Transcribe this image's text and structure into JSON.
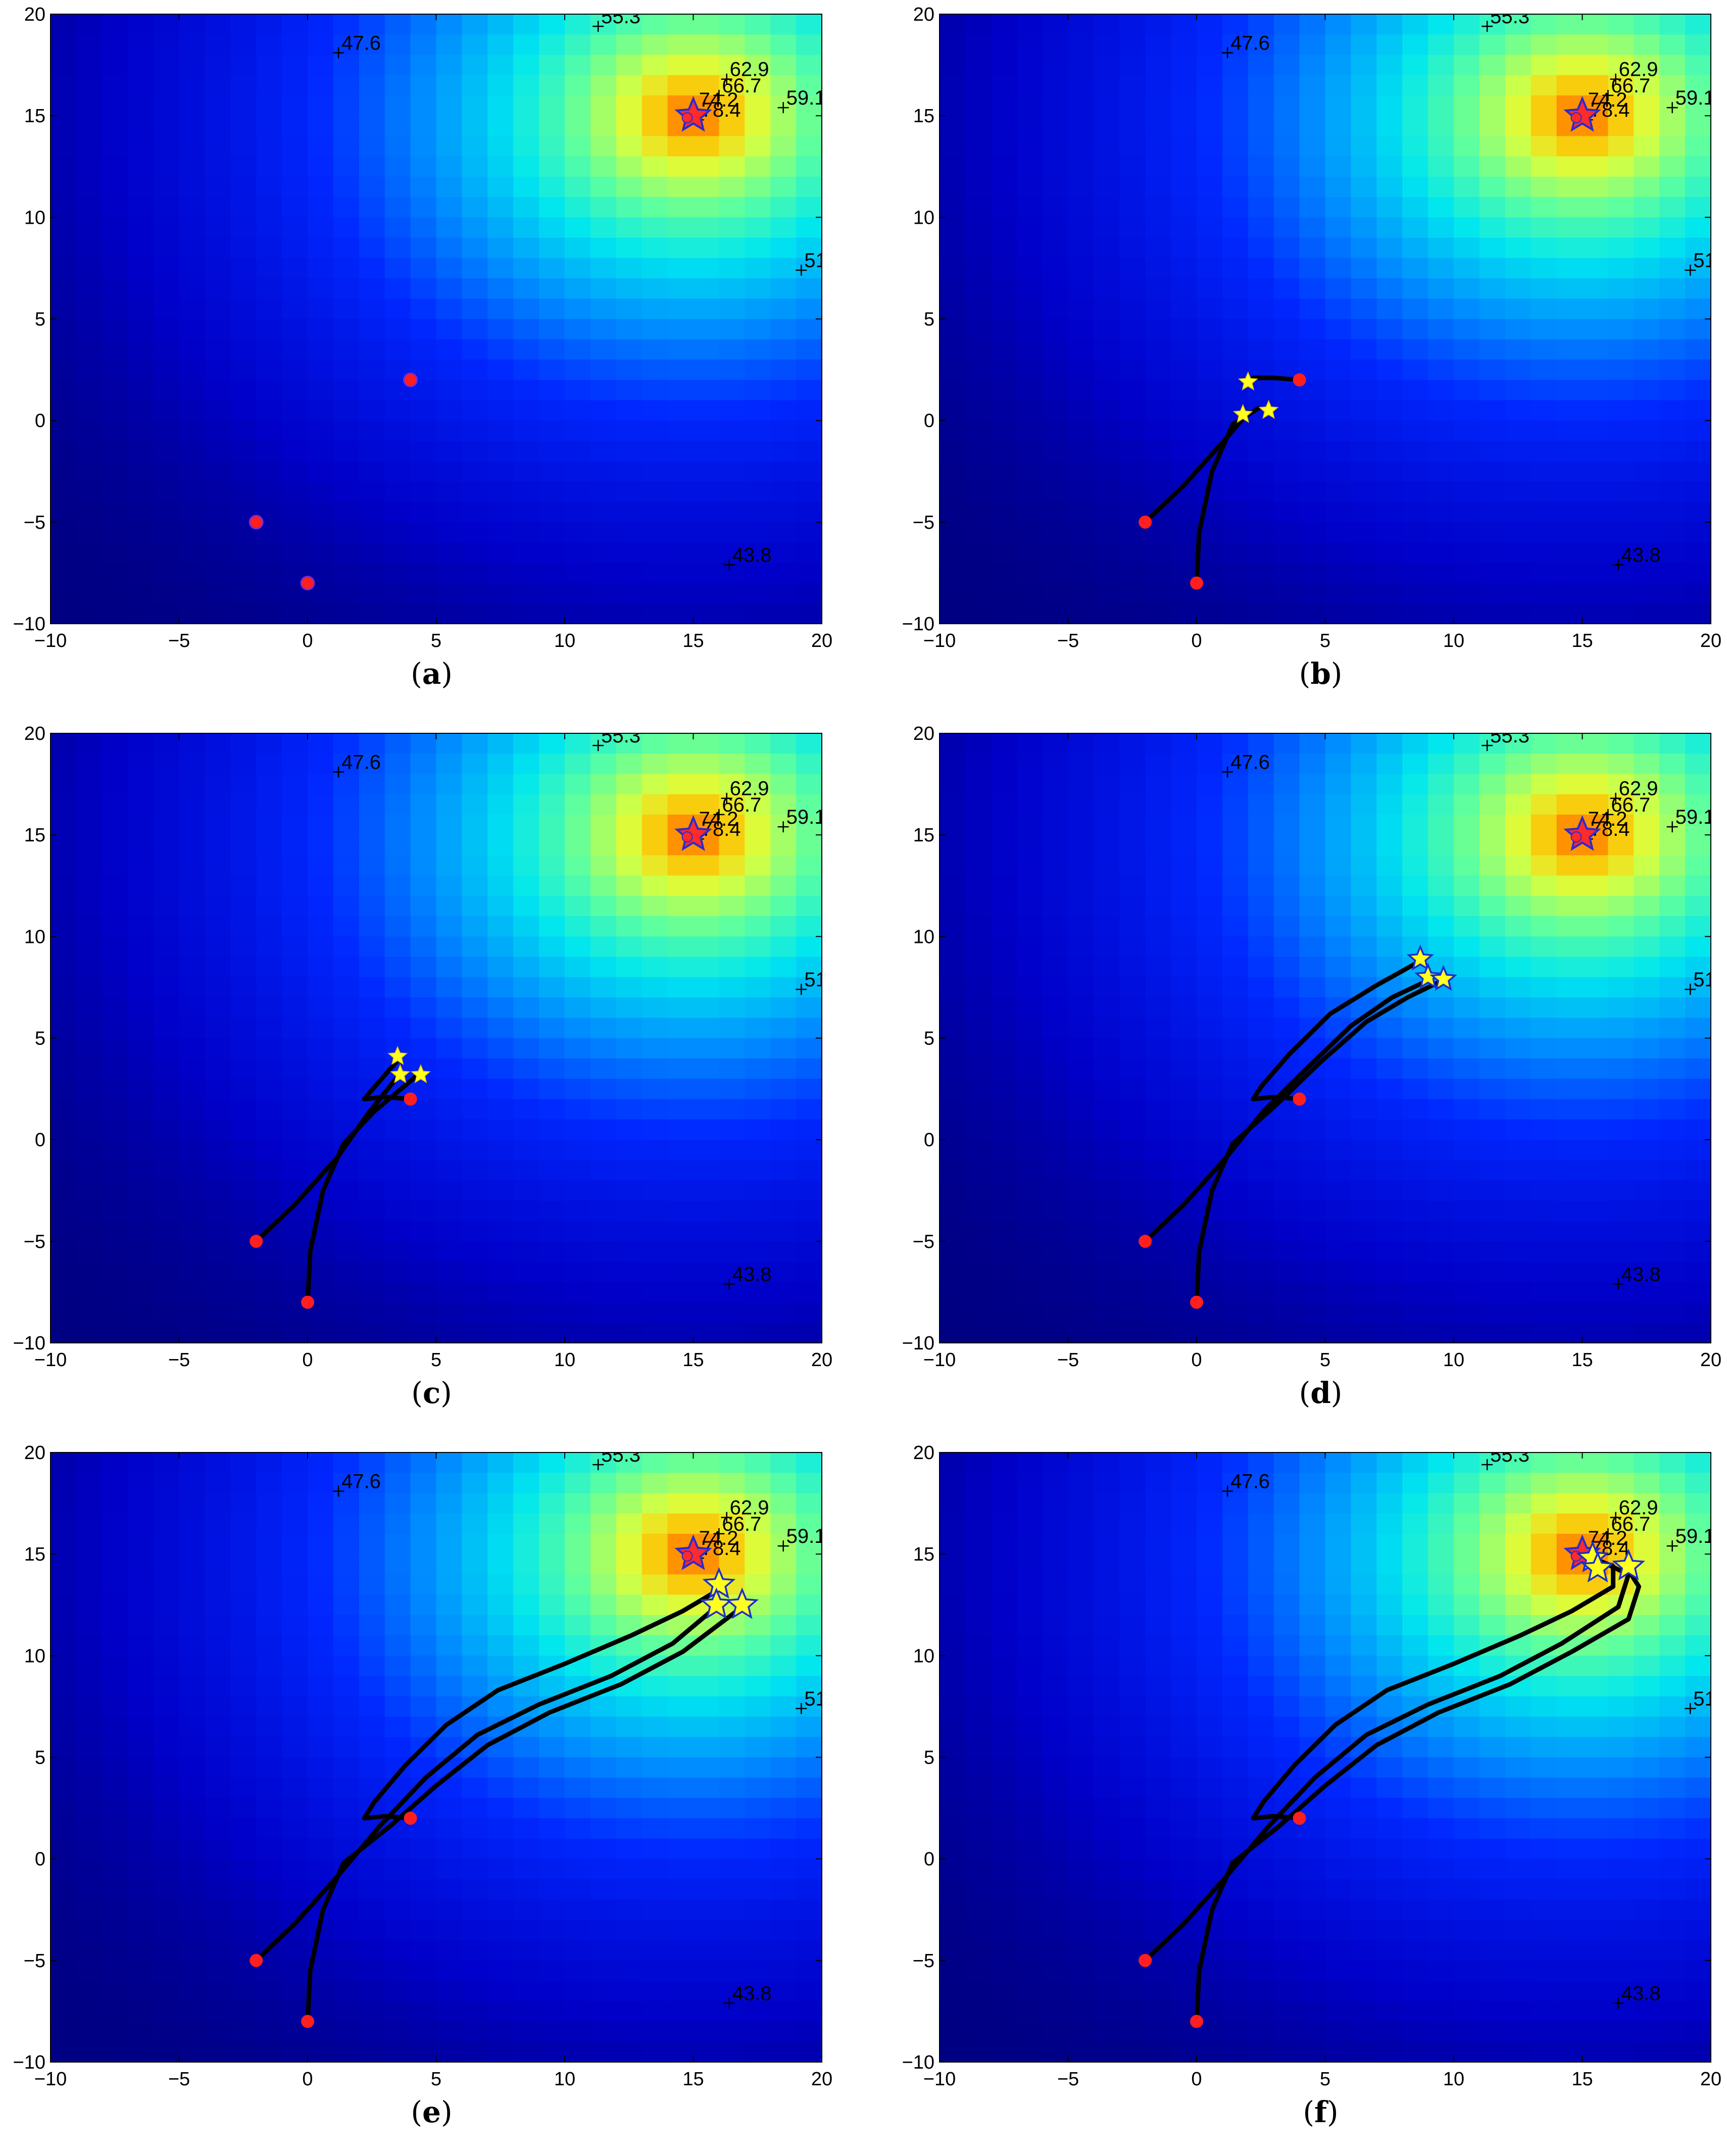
{
  "figure": {
    "panels": [
      {
        "id": "a",
        "caption_open": "(",
        "caption_letter": "a",
        "caption_close": ")"
      },
      {
        "id": "b",
        "caption_open": "(",
        "caption_letter": "b",
        "caption_close": ")"
      },
      {
        "id": "c",
        "caption_open": "(",
        "caption_letter": "c",
        "caption_close": ")"
      },
      {
        "id": "d",
        "caption_open": "(",
        "caption_letter": "d",
        "caption_close": ")"
      },
      {
        "id": "e",
        "caption_open": "(",
        "caption_letter": "e",
        "caption_close": ")"
      },
      {
        "id": "f",
        "caption_open": "(",
        "caption_letter": "f",
        "caption_close": ")"
      }
    ]
  },
  "chart_data": [
    {
      "panel": "a",
      "type": "heatmap",
      "xlim": [
        -10,
        20
      ],
      "ylim": [
        -10,
        20
      ],
      "xticks": [
        -10,
        -5,
        0,
        5,
        10,
        15,
        20
      ],
      "yticks": [
        -10,
        -5,
        0,
        5,
        10,
        15,
        20
      ],
      "peak": {
        "x": 15,
        "y": 15
      },
      "annotations": [
        {
          "text": "47.6",
          "x": 1.2,
          "y": 18.1
        },
        {
          "text": "55.3",
          "x": 11.3,
          "y": 19.4
        },
        {
          "text": "62.9",
          "x": 16.3,
          "y": 16.8
        },
        {
          "text": "66.7",
          "x": 16.0,
          "y": 16.0
        },
        {
          "text": "59.1",
          "x": 18.5,
          "y": 15.4
        },
        {
          "text": "74.2",
          "x": 15.1,
          "y": 15.3
        },
        {
          "text": "78.4",
          "x": 15.2,
          "y": 14.8
        },
        {
          "text": "51",
          "x": 19.2,
          "y": 7.4
        },
        {
          "text": "43.8",
          "x": 16.4,
          "y": -7.1
        }
      ],
      "paths": [],
      "starts": [
        {
          "x": 4,
          "y": 2
        },
        {
          "x": -2,
          "y": -5
        },
        {
          "x": 0,
          "y": -8
        }
      ],
      "stars": [],
      "star_style": "small"
    },
    {
      "panel": "b",
      "type": "heatmap",
      "xlim": [
        -10,
        20
      ],
      "ylim": [
        -10,
        20
      ],
      "xticks": [
        -10,
        -5,
        0,
        5,
        10,
        15,
        20
      ],
      "yticks": [
        -10,
        -5,
        0,
        5,
        10,
        15,
        20
      ],
      "peak": {
        "x": 15,
        "y": 15
      },
      "annotations": [
        {
          "text": "47.6",
          "x": 1.2,
          "y": 18.1
        },
        {
          "text": "55.3",
          "x": 11.3,
          "y": 19.4
        },
        {
          "text": "62.9",
          "x": 16.3,
          "y": 16.8
        },
        {
          "text": "66.7",
          "x": 16.0,
          "y": 16.0
        },
        {
          "text": "59.1",
          "x": 18.5,
          "y": 15.4
        },
        {
          "text": "74.2",
          "x": 15.1,
          "y": 15.3
        },
        {
          "text": "78.4",
          "x": 15.2,
          "y": 14.8
        },
        {
          "text": "51",
          "x": 19.2,
          "y": 7.4
        },
        {
          "text": "43.8",
          "x": 16.4,
          "y": -7.1
        }
      ],
      "paths": [
        [
          [
            4,
            2
          ],
          [
            3,
            2.1
          ],
          [
            2.2,
            2.1
          ]
        ],
        [
          [
            -2,
            -5
          ],
          [
            -0.5,
            -3.2
          ],
          [
            1.2,
            -0.8
          ],
          [
            2,
            0.4
          ]
        ],
        [
          [
            0,
            -8
          ],
          [
            0.1,
            -5.5
          ],
          [
            0.6,
            -2.5
          ],
          [
            1.4,
            -0.2
          ],
          [
            2.4,
            0.6
          ]
        ]
      ],
      "starts": [
        {
          "x": 4,
          "y": 2
        },
        {
          "x": -2,
          "y": -5
        },
        {
          "x": 0,
          "y": -8
        }
      ],
      "stars": [
        {
          "x": 2,
          "y": 1.9
        },
        {
          "x": 1.8,
          "y": 0.3
        },
        {
          "x": 2.8,
          "y": 0.5
        }
      ],
      "star_style": "small"
    },
    {
      "panel": "c",
      "type": "heatmap",
      "xlim": [
        -10,
        20
      ],
      "ylim": [
        -10,
        20
      ],
      "xticks": [
        -10,
        -5,
        0,
        5,
        10,
        15,
        20
      ],
      "yticks": [
        -10,
        -5,
        0,
        5,
        10,
        15,
        20
      ],
      "peak": {
        "x": 15,
        "y": 15
      },
      "annotations": [
        {
          "text": "47.6",
          "x": 1.2,
          "y": 18.1
        },
        {
          "text": "55.3",
          "x": 11.3,
          "y": 19.4
        },
        {
          "text": "62.9",
          "x": 16.3,
          "y": 16.8
        },
        {
          "text": "66.7",
          "x": 16.0,
          "y": 16.0
        },
        {
          "text": "59.1",
          "x": 18.5,
          "y": 15.4
        },
        {
          "text": "74.2",
          "x": 15.1,
          "y": 15.3
        },
        {
          "text": "78.4",
          "x": 15.2,
          "y": 14.8
        },
        {
          "text": "51",
          "x": 19.2,
          "y": 7.4
        },
        {
          "text": "43.8",
          "x": 16.4,
          "y": -7.1
        }
      ],
      "paths": [
        [
          [
            4,
            2
          ],
          [
            3,
            2.1
          ],
          [
            2.2,
            2.0
          ],
          [
            2.4,
            2.3
          ],
          [
            3.5,
            3.9
          ]
        ],
        [
          [
            -2,
            -5
          ],
          [
            -0.5,
            -3.2
          ],
          [
            1.2,
            -0.8
          ],
          [
            2.3,
            1.2
          ],
          [
            3.5,
            3.1
          ]
        ],
        [
          [
            0,
            -8
          ],
          [
            0.1,
            -5.5
          ],
          [
            0.6,
            -2.5
          ],
          [
            1.4,
            -0.2
          ],
          [
            2.6,
            1.4
          ],
          [
            4.2,
            3.1
          ]
        ]
      ],
      "starts": [
        {
          "x": 4,
          "y": 2
        },
        {
          "x": -2,
          "y": -5
        },
        {
          "x": 0,
          "y": -8
        }
      ],
      "stars": [
        {
          "x": 3.5,
          "y": 4.1
        },
        {
          "x": 3.6,
          "y": 3.2
        },
        {
          "x": 4.4,
          "y": 3.2
        }
      ],
      "star_style": "small"
    },
    {
      "panel": "d",
      "type": "heatmap",
      "xlim": [
        -10,
        20
      ],
      "ylim": [
        -10,
        20
      ],
      "xticks": [
        -10,
        -5,
        0,
        5,
        10,
        15,
        20
      ],
      "yticks": [
        -10,
        -5,
        0,
        5,
        10,
        15,
        20
      ],
      "peak": {
        "x": 15,
        "y": 15
      },
      "annotations": [
        {
          "text": "47.6",
          "x": 1.2,
          "y": 18.1
        },
        {
          "text": "55.3",
          "x": 11.3,
          "y": 19.4
        },
        {
          "text": "62.9",
          "x": 16.3,
          "y": 16.8
        },
        {
          "text": "66.7",
          "x": 16.0,
          "y": 16.0
        },
        {
          "text": "59.1",
          "x": 18.5,
          "y": 15.4
        },
        {
          "text": "74.2",
          "x": 15.1,
          "y": 15.3
        },
        {
          "text": "78.4",
          "x": 15.2,
          "y": 14.8
        },
        {
          "text": "51",
          "x": 19.2,
          "y": 7.4
        },
        {
          "text": "43.8",
          "x": 16.4,
          "y": -7.1
        }
      ],
      "paths": [
        [
          [
            4,
            2
          ],
          [
            3,
            2.1
          ],
          [
            2.2,
            2.0
          ],
          [
            2.5,
            2.6
          ],
          [
            3.6,
            4.2
          ],
          [
            5.2,
            6.2
          ],
          [
            7,
            7.6
          ],
          [
            8.7,
            8.8
          ]
        ],
        [
          [
            -2,
            -5
          ],
          [
            -0.5,
            -3.2
          ],
          [
            1.2,
            -0.8
          ],
          [
            2.6,
            1.4
          ],
          [
            4.2,
            3.4
          ],
          [
            6,
            5.6
          ],
          [
            7.6,
            7.0
          ],
          [
            9.1,
            7.9
          ]
        ],
        [
          [
            0,
            -8
          ],
          [
            0.1,
            -5.5
          ],
          [
            0.6,
            -2.5
          ],
          [
            1.4,
            -0.2
          ],
          [
            3,
            1.6
          ],
          [
            4.8,
            3.8
          ],
          [
            6.6,
            5.8
          ],
          [
            8.2,
            7.0
          ],
          [
            9.5,
            7.8
          ]
        ]
      ],
      "starts": [
        {
          "x": 4,
          "y": 2
        },
        {
          "x": -2,
          "y": -5
        },
        {
          "x": 0,
          "y": -8
        }
      ],
      "stars": [
        {
          "x": 8.7,
          "y": 8.9
        },
        {
          "x": 9.0,
          "y": 8.0
        },
        {
          "x": 9.6,
          "y": 7.9
        }
      ],
      "star_style": "medium"
    },
    {
      "panel": "e",
      "type": "heatmap",
      "xlim": [
        -10,
        20
      ],
      "ylim": [
        -10,
        20
      ],
      "xticks": [
        -10,
        -5,
        0,
        5,
        10,
        15,
        20
      ],
      "yticks": [
        -10,
        -5,
        0,
        5,
        10,
        15,
        20
      ],
      "peak": {
        "x": 15,
        "y": 15
      },
      "annotations": [
        {
          "text": "47.6",
          "x": 1.2,
          "y": 18.1
        },
        {
          "text": "55.3",
          "x": 11.3,
          "y": 19.4
        },
        {
          "text": "62.9",
          "x": 16.3,
          "y": 16.8
        },
        {
          "text": "66.7",
          "x": 16.0,
          "y": 16.0
        },
        {
          "text": "59.1",
          "x": 18.5,
          "y": 15.4
        },
        {
          "text": "74.2",
          "x": 15.1,
          "y": 15.3
        },
        {
          "text": "78.4",
          "x": 15.2,
          "y": 14.8
        },
        {
          "text": "51",
          "x": 19.2,
          "y": 7.4
        },
        {
          "text": "43.8",
          "x": 16.4,
          "y": -7.1
        }
      ],
      "paths": [
        [
          [
            4,
            2
          ],
          [
            3,
            2.1
          ],
          [
            2.2,
            2.0
          ],
          [
            2.6,
            2.8
          ],
          [
            3.8,
            4.6
          ],
          [
            5.4,
            6.6
          ],
          [
            7.4,
            8.3
          ],
          [
            10,
            9.6
          ],
          [
            12.6,
            11.0
          ],
          [
            14.6,
            12.2
          ],
          [
            15.8,
            13.1
          ]
        ],
        [
          [
            -2,
            -5
          ],
          [
            -0.5,
            -3.2
          ],
          [
            1.2,
            -0.8
          ],
          [
            2.8,
            1.6
          ],
          [
            4.6,
            4.0
          ],
          [
            6.6,
            6.1
          ],
          [
            9,
            7.6
          ],
          [
            11.8,
            9.0
          ],
          [
            14.2,
            10.6
          ],
          [
            15.8,
            12.3
          ]
        ],
        [
          [
            0,
            -8
          ],
          [
            0.1,
            -5.5
          ],
          [
            0.6,
            -2.5
          ],
          [
            1.4,
            -0.2
          ],
          [
            3.2,
            1.6
          ],
          [
            5.0,
            3.6
          ],
          [
            7.0,
            5.6
          ],
          [
            9.4,
            7.2
          ],
          [
            12.2,
            8.6
          ],
          [
            14.6,
            10.2
          ],
          [
            16.8,
            12.3
          ]
        ]
      ],
      "starts": [
        {
          "x": 4,
          "y": 2
        },
        {
          "x": -2,
          "y": -5
        },
        {
          "x": 0,
          "y": -8
        }
      ],
      "stars": [
        {
          "x": 16.0,
          "y": 13.5
        },
        {
          "x": 15.9,
          "y": 12.5
        },
        {
          "x": 16.9,
          "y": 12.5
        }
      ],
      "star_style": "large"
    },
    {
      "panel": "f",
      "type": "heatmap",
      "xlim": [
        -10,
        20
      ],
      "ylim": [
        -10,
        20
      ],
      "xticks": [
        -10,
        -5,
        0,
        5,
        10,
        15,
        20
      ],
      "yticks": [
        -10,
        -5,
        0,
        5,
        10,
        15,
        20
      ],
      "peak": {
        "x": 15,
        "y": 15
      },
      "annotations": [
        {
          "text": "47.6",
          "x": 1.2,
          "y": 18.1
        },
        {
          "text": "55.3",
          "x": 11.3,
          "y": 19.4
        },
        {
          "text": "62.9",
          "x": 16.3,
          "y": 16.8
        },
        {
          "text": "66.7",
          "x": 16.0,
          "y": 16.0
        },
        {
          "text": "59.1",
          "x": 18.5,
          "y": 15.4
        },
        {
          "text": "74.2",
          "x": 15.1,
          "y": 15.3
        },
        {
          "text": "78.4",
          "x": 15.2,
          "y": 14.8
        },
        {
          "text": "51",
          "x": 19.2,
          "y": 7.4
        },
        {
          "text": "43.8",
          "x": 16.4,
          "y": -7.1
        }
      ],
      "paths": [
        [
          [
            4,
            2
          ],
          [
            3,
            2.1
          ],
          [
            2.2,
            2.0
          ],
          [
            2.6,
            2.8
          ],
          [
            3.8,
            4.6
          ],
          [
            5.4,
            6.6
          ],
          [
            7.4,
            8.3
          ],
          [
            10,
            9.6
          ],
          [
            12.6,
            11.0
          ],
          [
            14.6,
            12.2
          ],
          [
            16.2,
            13.4
          ],
          [
            16.2,
            14.4
          ],
          [
            15.4,
            14.8
          ]
        ],
        [
          [
            -2,
            -5
          ],
          [
            -0.5,
            -3.2
          ],
          [
            1.2,
            -0.8
          ],
          [
            2.8,
            1.6
          ],
          [
            4.6,
            4.0
          ],
          [
            6.6,
            6.1
          ],
          [
            9,
            7.6
          ],
          [
            11.8,
            9.0
          ],
          [
            14.2,
            10.6
          ],
          [
            16.4,
            12.4
          ],
          [
            16.8,
            14.0
          ],
          [
            15.8,
            14.6
          ]
        ],
        [
          [
            0,
            -8
          ],
          [
            0.1,
            -5.5
          ],
          [
            0.6,
            -2.5
          ],
          [
            1.4,
            -0.2
          ],
          [
            3.2,
            1.6
          ],
          [
            5.0,
            3.6
          ],
          [
            7.0,
            5.6
          ],
          [
            9.4,
            7.2
          ],
          [
            12.2,
            8.6
          ],
          [
            14.6,
            10.2
          ],
          [
            16.8,
            11.8
          ],
          [
            17.2,
            13.4
          ],
          [
            16.6,
            14.6
          ]
        ]
      ],
      "starts": [
        {
          "x": 4,
          "y": 2
        },
        {
          "x": -2,
          "y": -5
        },
        {
          "x": 0,
          "y": -8
        }
      ],
      "stars": [
        {
          "x": 15.4,
          "y": 14.8
        },
        {
          "x": 15.6,
          "y": 14.3
        },
        {
          "x": 16.8,
          "y": 14.4
        }
      ],
      "star_style": "large"
    }
  ],
  "colors": {
    "start_marker": "#ff1f1f",
    "path": "#000000",
    "star_fill": "#ffff20",
    "star_edge": "#1a2ecc",
    "peak_star_fill": "#ff2a2a",
    "peak_star_edge": "#2a2ad0"
  }
}
